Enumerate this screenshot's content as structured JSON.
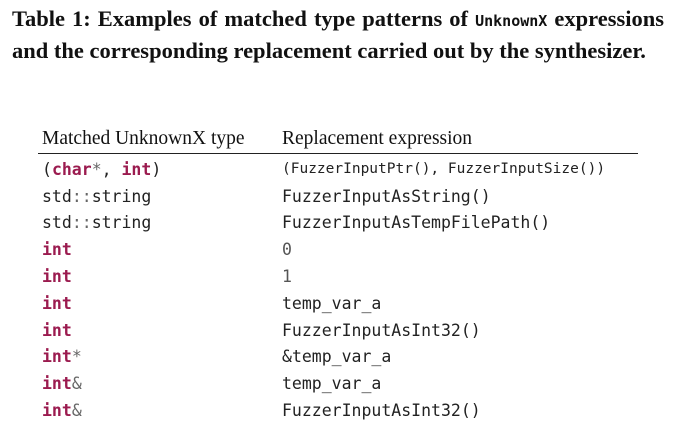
{
  "caption": {
    "prefix": "Table 1: Examples of matched type patterns of ",
    "code": "UnknownX",
    "suffix": " expressions and the corresponding replacement carried out by the synthesizer."
  },
  "table": {
    "headers": {
      "matched": "Matched UnknownX type",
      "replacement": "Replacement expression"
    },
    "rows": [
      {
        "type": "(char*, int)",
        "replacement": "(FuzzerInputPtr(), FuzzerInputSize())"
      },
      {
        "type": "std::string",
        "replacement": "FuzzerInputAsString()"
      },
      {
        "type": "std::string",
        "replacement": "FuzzerInputAsTempFilePath()"
      },
      {
        "type": "int",
        "replacement": "0"
      },
      {
        "type": "int",
        "replacement": "1"
      },
      {
        "type": "int",
        "replacement": "temp_var_a"
      },
      {
        "type": "int",
        "replacement": "FuzzerInputAsInt32()"
      },
      {
        "type": "int*",
        "replacement": "&temp_var_a"
      },
      {
        "type": "int&",
        "replacement": "temp_var_a"
      },
      {
        "type": "int&",
        "replacement": "FuzzerInputAsInt32()"
      }
    ]
  }
}
